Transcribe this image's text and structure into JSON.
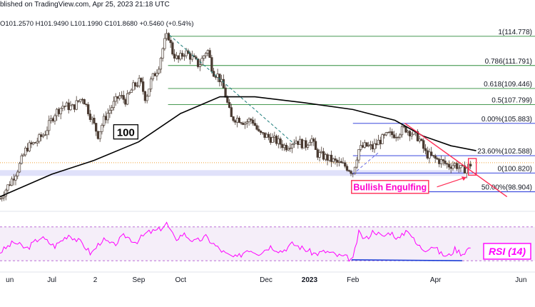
{
  "header": {
    "published": "blished on TradingView.com, Apr 25, 2023 21:18 UTC",
    "ohlc": "O101.2570  H101.9490  L101.1990  C101.8680  +0.5460 (+0.54%)"
  },
  "colors": {
    "candle": "#4a3b32",
    "sma": "#000000",
    "fib": "#2e8b3a",
    "fib_base": "#1d2dd8",
    "trendline": "#ff2d55",
    "rsi": "#ff00ff",
    "rsi_divergence": "#1c3fd6",
    "dashed_trend": "#1b7c7a"
  },
  "chart_data": [
    {
      "type": "candlestick",
      "instrument_note": "daily price chart",
      "x_ticks": [
        "un",
        "Jul",
        "2",
        "Sep",
        "Oct",
        "Dec",
        "2023",
        "Feb",
        "Apr",
        "Jun"
      ],
      "x_tick_positions_days": [
        0,
        30,
        61,
        92,
        122,
        183,
        214,
        245,
        304,
        365
      ],
      "x_range_days": [
        -7,
        375
      ],
      "ylim": [
        97.2,
        116.0
      ],
      "close_path": [
        {
          "d": -7,
          "v": 98.2
        },
        {
          "d": 0,
          "v": 99.8
        },
        {
          "d": 6,
          "v": 101.3
        },
        {
          "d": 12,
          "v": 103.4
        },
        {
          "d": 18,
          "v": 103.9
        },
        {
          "d": 25,
          "v": 104.9
        },
        {
          "d": 32,
          "v": 106.9
        },
        {
          "d": 38,
          "v": 107.7
        },
        {
          "d": 45,
          "v": 107.5
        },
        {
          "d": 52,
          "v": 108.6
        },
        {
          "d": 58,
          "v": 106.5
        },
        {
          "d": 63,
          "v": 104.7
        },
        {
          "d": 67,
          "v": 106.2
        },
        {
          "d": 72,
          "v": 107.4
        },
        {
          "d": 78,
          "v": 108.7
        },
        {
          "d": 83,
          "v": 108.2
        },
        {
          "d": 88,
          "v": 109.6
        },
        {
          "d": 93,
          "v": 110.2
        },
        {
          "d": 97,
          "v": 108.4
        },
        {
          "d": 101,
          "v": 110.3
        },
        {
          "d": 106,
          "v": 111.6
        },
        {
          "d": 110,
          "v": 114.0
        },
        {
          "d": 113,
          "v": 115.0
        },
        {
          "d": 116,
          "v": 113.2
        },
        {
          "d": 120,
          "v": 112.3
        },
        {
          "d": 125,
          "v": 113.2
        },
        {
          "d": 130,
          "v": 112.6
        },
        {
          "d": 135,
          "v": 111.8
        },
        {
          "d": 141,
          "v": 113.5
        },
        {
          "d": 145,
          "v": 111.2
        },
        {
          "d": 149,
          "v": 110.7
        },
        {
          "d": 153,
          "v": 109.3
        },
        {
          "d": 158,
          "v": 106.4
        },
        {
          "d": 163,
          "v": 106.4
        },
        {
          "d": 168,
          "v": 106.0
        },
        {
          "d": 173,
          "v": 106.3
        },
        {
          "d": 178,
          "v": 104.8
        },
        {
          "d": 183,
          "v": 104.6
        },
        {
          "d": 190,
          "v": 104.1
        },
        {
          "d": 197,
          "v": 103.5
        },
        {
          "d": 204,
          "v": 104.2
        },
        {
          "d": 211,
          "v": 103.6
        },
        {
          "d": 215,
          "v": 104.5
        },
        {
          "d": 219,
          "v": 102.8
        },
        {
          "d": 226,
          "v": 102.4
        },
        {
          "d": 233,
          "v": 101.9
        },
        {
          "d": 240,
          "v": 101.5
        },
        {
          "d": 245,
          "v": 100.9
        },
        {
          "d": 249,
          "v": 103.2
        },
        {
          "d": 254,
          "v": 103.6
        },
        {
          "d": 259,
          "v": 103.4
        },
        {
          "d": 264,
          "v": 104.1
        },
        {
          "d": 270,
          "v": 104.7
        },
        {
          "d": 276,
          "v": 104.8
        },
        {
          "d": 282,
          "v": 105.4
        },
        {
          "d": 287,
          "v": 104.9
        },
        {
          "d": 292,
          "v": 104.4
        },
        {
          "d": 297,
          "v": 102.8
        },
        {
          "d": 303,
          "v": 102.3
        },
        {
          "d": 308,
          "v": 102.0
        },
        {
          "d": 313,
          "v": 101.6
        },
        {
          "d": 318,
          "v": 101.7
        },
        {
          "d": 323,
          "v": 101.1
        },
        {
          "d": 327,
          "v": 101.4
        },
        {
          "d": 330,
          "v": 101.87
        }
      ],
      "sma": {
        "label": "100",
        "points": [
          {
            "d": -7,
            "v": 98.4
          },
          {
            "d": 30,
            "v": 100.7
          },
          {
            "d": 60,
            "v": 102.1
          },
          {
            "d": 92,
            "v": 104.0
          },
          {
            "d": 122,
            "v": 106.9
          },
          {
            "d": 150,
            "v": 108.6
          },
          {
            "d": 175,
            "v": 108.6
          },
          {
            "d": 210,
            "v": 108.0
          },
          {
            "d": 245,
            "v": 107.3
          },
          {
            "d": 275,
            "v": 106.2
          },
          {
            "d": 295,
            "v": 104.6
          },
          {
            "d": 315,
            "v": 103.6
          },
          {
            "d": 333,
            "v": 103.1
          }
        ]
      },
      "fibonacci": [
        {
          "label": "1(114.778)",
          "value": 114.778
        },
        {
          "label": "0.786(111.791)",
          "value": 111.791
        },
        {
          "label": "0.618(109.446)",
          "value": 109.446
        },
        {
          "label": "0.5(107.799)",
          "value": 107.799
        },
        {
          "label": "0.00%(105.883)",
          "value": 105.883
        },
        {
          "label": "23.60%(102.588)",
          "value": 102.588
        },
        {
          "label": "0(100.820)",
          "value": 100.82
        },
        {
          "label": "50.00%(98.904)",
          "value": 98.904
        }
      ],
      "trendline": [
        {
          "d": 282,
          "v": 105.9
        },
        {
          "d": 355,
          "v": 98.4
        }
      ],
      "dashed_trend": [
        {
          "d": 114,
          "v": 114.9
        },
        {
          "d": 203,
          "v": 103.8
        }
      ],
      "dashed_trend_2": [
        {
          "d": 245,
          "v": 100.7
        },
        {
          "d": 264,
          "v": 103.0
        }
      ],
      "annotation": {
        "text": "Bullish Engulfing",
        "at": {
          "d": 330,
          "v": 101.4
        }
      }
    },
    {
      "type": "line",
      "title": "RSI (14)",
      "ylim": [
        20,
        85
      ],
      "levels": [
        70,
        30
      ],
      "series": [
        {
          "values": [
            {
              "d": -7,
              "v": 40
            },
            {
              "d": 3,
              "v": 52
            },
            {
              "d": 12,
              "v": 44
            },
            {
              "d": 22,
              "v": 58
            },
            {
              "d": 32,
              "v": 47
            },
            {
              "d": 42,
              "v": 61
            },
            {
              "d": 52,
              "v": 50
            },
            {
              "d": 58,
              "v": 38
            },
            {
              "d": 66,
              "v": 55
            },
            {
              "d": 74,
              "v": 48
            },
            {
              "d": 82,
              "v": 60
            },
            {
              "d": 90,
              "v": 52
            },
            {
              "d": 98,
              "v": 63
            },
            {
              "d": 106,
              "v": 66
            },
            {
              "d": 112,
              "v": 74
            },
            {
              "d": 118,
              "v": 55
            },
            {
              "d": 124,
              "v": 62
            },
            {
              "d": 132,
              "v": 52
            },
            {
              "d": 140,
              "v": 58
            },
            {
              "d": 148,
              "v": 46
            },
            {
              "d": 155,
              "v": 37
            },
            {
              "d": 162,
              "v": 33
            },
            {
              "d": 170,
              "v": 44
            },
            {
              "d": 178,
              "v": 39
            },
            {
              "d": 186,
              "v": 47
            },
            {
              "d": 194,
              "v": 41
            },
            {
              "d": 202,
              "v": 50
            },
            {
              "d": 210,
              "v": 44
            },
            {
              "d": 218,
              "v": 38
            },
            {
              "d": 226,
              "v": 41
            },
            {
              "d": 234,
              "v": 36
            },
            {
              "d": 240,
              "v": 34
            },
            {
              "d": 245,
              "v": 31
            },
            {
              "d": 249,
              "v": 63
            },
            {
              "d": 254,
              "v": 55
            },
            {
              "d": 260,
              "v": 66
            },
            {
              "d": 266,
              "v": 58
            },
            {
              "d": 272,
              "v": 64
            },
            {
              "d": 278,
              "v": 55
            },
            {
              "d": 284,
              "v": 68
            },
            {
              "d": 290,
              "v": 50
            },
            {
              "d": 296,
              "v": 43
            },
            {
              "d": 302,
              "v": 48
            },
            {
              "d": 308,
              "v": 38
            },
            {
              "d": 313,
              "v": 35
            },
            {
              "d": 318,
              "v": 44
            },
            {
              "d": 323,
              "v": 38
            },
            {
              "d": 327,
              "v": 44
            },
            {
              "d": 330,
              "v": 47
            }
          ]
        }
      ],
      "divergence_line": [
        {
          "d": 244,
          "v": 31
        },
        {
          "d": 323,
          "v": 30
        }
      ]
    }
  ]
}
